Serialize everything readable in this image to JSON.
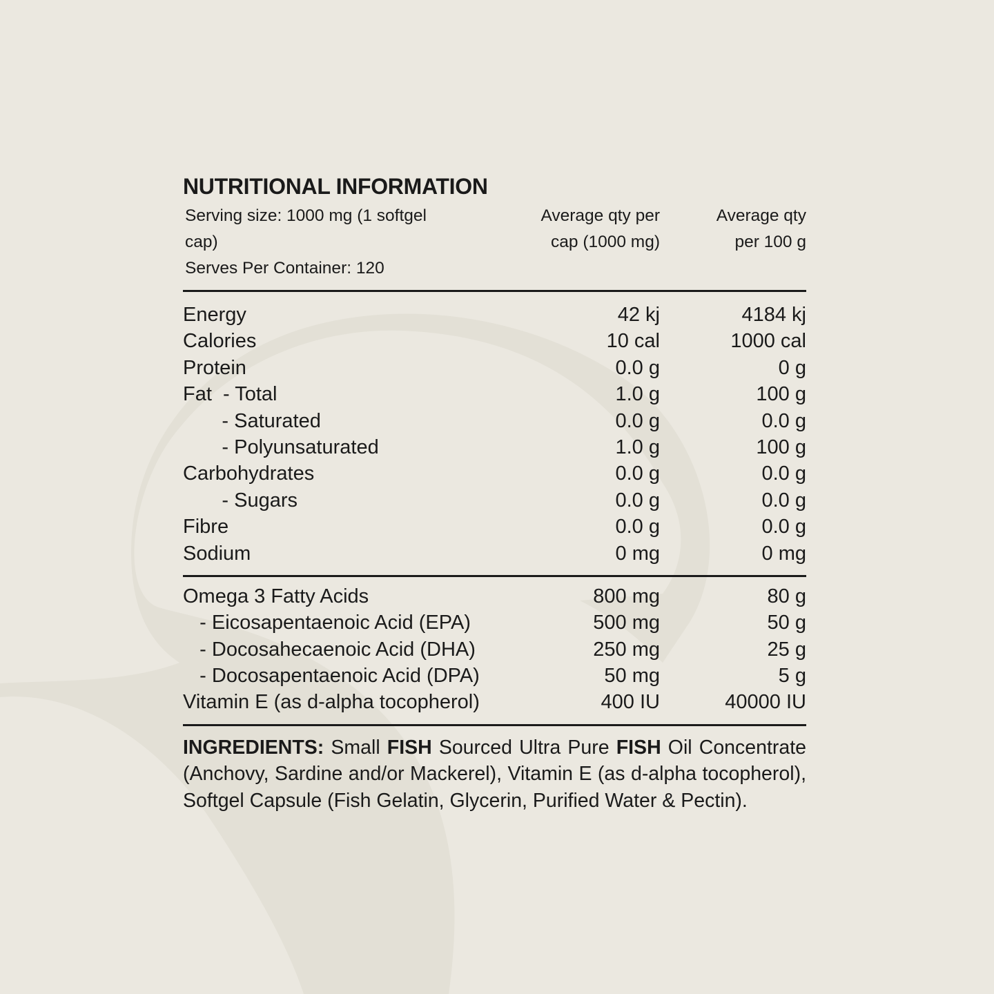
{
  "title": "NUTRITIONAL INFORMATION",
  "header": {
    "serving_size": "Serving size: 1000 mg (1 softgel cap)",
    "serves": "Serves Per Container: 120",
    "col1_line1": "Average qty per",
    "col1_line2": "cap (1000 mg)",
    "col2_line1": "Average qty",
    "col2_line2": "per 100 g"
  },
  "nutrients": [
    {
      "label": "Energy",
      "per_cap": "42 kj",
      "per_100g": "4184 kj"
    },
    {
      "label": "Calories",
      "per_cap": "10 cal",
      "per_100g": "1000 cal"
    },
    {
      "label": "Protein",
      "per_cap": "0.0 g",
      "per_100g": "0 g"
    },
    {
      "label": "Fat  - Total",
      "per_cap": "1.0 g",
      "per_100g": "100 g"
    },
    {
      "label": "       - Saturated",
      "per_cap": "0.0 g",
      "per_100g": "0.0 g"
    },
    {
      "label": "       - Polyunsaturated",
      "per_cap": "1.0 g",
      "per_100g": "100 g"
    },
    {
      "label": "Carbohydrates",
      "per_cap": "0.0 g",
      "per_100g": "0.0 g"
    },
    {
      "label": "       - Sugars",
      "per_cap": "0.0 g",
      "per_100g": "0.0 g"
    },
    {
      "label": "Fibre",
      "per_cap": "0.0 g",
      "per_100g": "0.0 g"
    },
    {
      "label": "Sodium",
      "per_cap": "0 mg",
      "per_100g": "0 mg"
    }
  ],
  "fatty_acids": [
    {
      "label": "Omega 3 Fatty Acids",
      "per_cap": "800 mg",
      "per_100g": "80 g"
    },
    {
      "label": "   - Eicosapentaenoic Acid (EPA)",
      "per_cap": "500 mg",
      "per_100g": "50 g"
    },
    {
      "label": "   - Docosahecaenoic Acid (DHA)",
      "per_cap": "250 mg",
      "per_100g": "25 g"
    },
    {
      "label": "   - Docosapentaenoic Acid (DPA)",
      "per_cap": "50 mg",
      "per_100g": "5 g"
    },
    {
      "label": "Vitamin E (as d-alpha tocopherol)",
      "per_cap": "400 IU",
      "per_100g": "40000 IU"
    }
  ],
  "ingredients": {
    "label": "INGREDIENTS:",
    "t1": " Small ",
    "b1": "FISH",
    "t2": " Sourced Ultra Pure ",
    "b2": "FISH",
    "t3": " Oil Concentrate (Anchovy, Sardine and/or Mackerel), Vitamin E (as d-alpha tocopherol), Softgel Capsule (Fish Gelatin, Glycerin, Purified Water & Pectin)."
  },
  "colors": {
    "background": "#ebe8e0",
    "shape": "#e2dfd5",
    "text": "#1a1a1a"
  }
}
